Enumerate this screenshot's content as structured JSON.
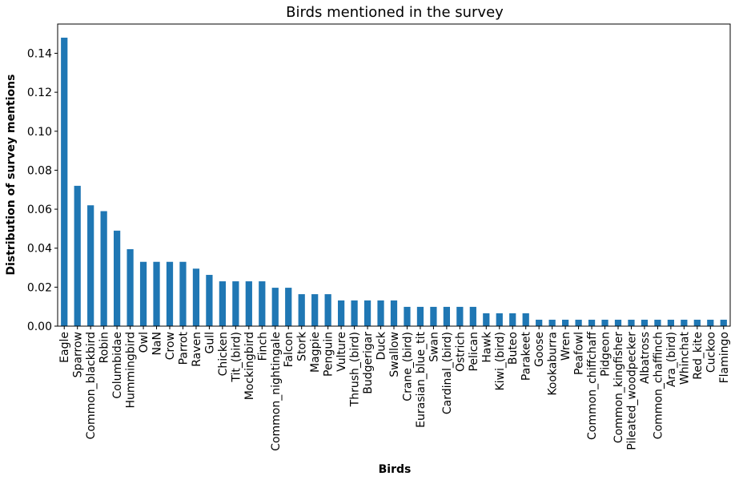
{
  "chart_data": {
    "type": "bar",
    "title": "Birds mentioned in the survey",
    "xlabel": "Birds",
    "ylabel": "Distribution of survey mentions",
    "ylim": [
      0,
      0.155
    ],
    "yticks": [
      "0.00",
      "0.02",
      "0.04",
      "0.06",
      "0.08",
      "0.10",
      "0.12",
      "0.14"
    ],
    "grid": false,
    "legend": "none",
    "bar_color": "#1f77b4",
    "categories": [
      "Eagle",
      "Sparrow",
      "Common_blackbird",
      "Robin",
      "Columbidae",
      "Hummingbird",
      "Owl",
      "NaN",
      "Crow",
      "Parrot",
      "Raven",
      "Gull",
      "Chicken",
      "Tit_(bird)",
      "Mockingbird",
      "Finch",
      "Common_nightingale",
      "Falcon",
      "Stork",
      "Magpie",
      "Penguin",
      "Vulture",
      "Thrush_(bird)",
      "Budgerigar",
      "Duck",
      "Swallow",
      "Crane_(bird)",
      "Eurasian_blue_tit",
      "Swan",
      "Cardinal_(bird)",
      "Ostrich",
      "Pelican",
      "Hawk",
      "Kiwi_(bird)",
      "Buteo",
      "Parakeet",
      "Goose",
      "Kookaburra",
      "Wren",
      "Peafowl",
      "Common_chiffchaff",
      "Pidgeon",
      "Common_kingfisher",
      "Pileated_woodpecker",
      "Albatross",
      "Common_chaffinch",
      "Ara_(bird)",
      "Whinchat",
      "Red_kite",
      "Cuckoo",
      "Flamingo"
    ],
    "values": [
      0.148,
      0.072,
      0.062,
      0.059,
      0.049,
      0.0395,
      0.033,
      0.033,
      0.033,
      0.033,
      0.0295,
      0.0263,
      0.023,
      0.023,
      0.023,
      0.023,
      0.0197,
      0.0197,
      0.0164,
      0.0164,
      0.0164,
      0.0132,
      0.0132,
      0.0132,
      0.0132,
      0.0132,
      0.0099,
      0.0099,
      0.0099,
      0.0099,
      0.0099,
      0.0099,
      0.0066,
      0.0066,
      0.0066,
      0.0066,
      0.0033,
      0.0033,
      0.0033,
      0.0033,
      0.0033,
      0.0033,
      0.0033,
      0.0033,
      0.0033,
      0.0033,
      0.0033,
      0.0033,
      0.0033,
      0.0033,
      0.0033
    ]
  }
}
